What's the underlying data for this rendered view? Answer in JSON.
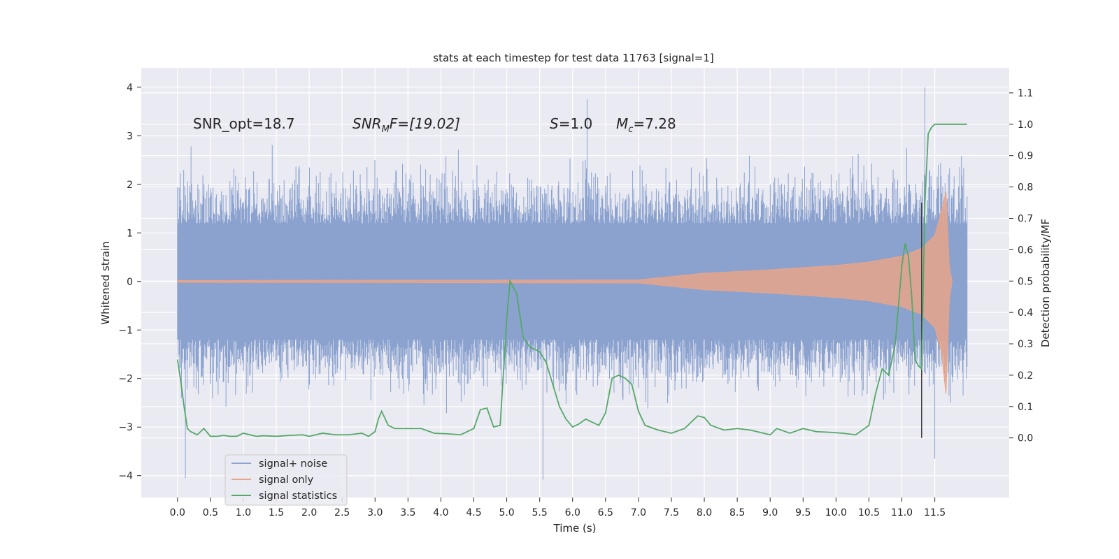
{
  "chart_data": {
    "type": "line",
    "title": "stats at each timestep for test data 11763 [signal=1]",
    "xlabel": "Time (s)",
    "ylabel": "Whitened strain",
    "ylabel_right": "Detection probability/MF",
    "xlim": [
      -0.55,
      12.63
    ],
    "ylim": [
      -4.45,
      4.4
    ],
    "ylim_right": [
      -0.19,
      1.18
    ],
    "x_ticks": [
      "0.0",
      "0.5",
      "1.0",
      "1.5",
      "2.0",
      "2.5",
      "3.0",
      "3.5",
      "4.0",
      "4.5",
      "5.0",
      "5.5",
      "6.0",
      "6.5",
      "7.0",
      "7.5",
      "8.0",
      "8.5",
      "9.0",
      "9.5",
      "10.0",
      "10.5",
      "11.0",
      "11.5"
    ],
    "y_ticks": [
      "4",
      "3",
      "2",
      "1",
      "0",
      "−1",
      "−2",
      "−3",
      "−4"
    ],
    "y_ticks_right": [
      "1.1",
      "1.0",
      "0.9",
      "0.8",
      "0.7",
      "0.6",
      "0.5",
      "0.4",
      "0.3",
      "0.2",
      "0.1",
      "0.0"
    ],
    "grid": true,
    "legend_position": "lower-left",
    "annotations": {
      "snr_opt": "SNR_opt=18.7",
      "snr_mf_prefix": "SNR",
      "snr_mf_sub": "M",
      "snr_mf_suffix": "F=[19.02]",
      "s_var": "S",
      "s_val": "=1.0",
      "mc_var": "M",
      "mc_sub": "c",
      "mc_val": "=7.28"
    },
    "marker_line_x": 11.3,
    "series": [
      {
        "name": "signal+ noise",
        "color": "#8ba2cf",
        "description_key": "noise",
        "x_range": [
          0.0,
          11.99
        ],
        "envelope": {
          "inner": 1.2,
          "notable_peaks": [
            {
              "x": 0.12,
              "y": -4.05
            },
            {
              "x": 6.22,
              "y": 3.75
            },
            {
              "x": 5.55,
              "y": -4.08
            },
            {
              "x": 11.35,
              "y": 4.0
            },
            {
              "x": 11.5,
              "y": -3.65
            }
          ]
        }
      },
      {
        "name": "signal only",
        "color": "#e6a58a",
        "envelope_points": [
          {
            "x": 0.0,
            "y": 0.02
          },
          {
            "x": 7.0,
            "y": 0.03
          },
          {
            "x": 8.0,
            "y": 0.17
          },
          {
            "x": 9.0,
            "y": 0.24
          },
          {
            "x": 10.0,
            "y": 0.33
          },
          {
            "x": 10.5,
            "y": 0.4
          },
          {
            "x": 11.0,
            "y": 0.52
          },
          {
            "x": 11.3,
            "y": 0.68
          },
          {
            "x": 11.5,
            "y": 0.95
          },
          {
            "x": 11.6,
            "y": 1.45
          },
          {
            "x": 11.67,
            "y": 1.85
          },
          {
            "x": 11.72,
            "y": 0.3
          },
          {
            "x": 11.76,
            "y": 0.02
          }
        ]
      },
      {
        "name": "signal statistics",
        "color": "#55a868",
        "x": [
          0.0,
          0.05,
          0.1,
          0.15,
          0.2,
          0.3,
          0.4,
          0.5,
          0.6,
          0.7,
          0.8,
          0.9,
          1.0,
          1.1,
          1.2,
          1.3,
          1.5,
          1.7,
          1.9,
          2.0,
          2.1,
          2.2,
          2.4,
          2.6,
          2.8,
          2.9,
          3.0,
          3.05,
          3.1,
          3.2,
          3.3,
          3.5,
          3.7,
          3.9,
          4.1,
          4.3,
          4.5,
          4.6,
          4.7,
          4.8,
          4.9,
          5.0,
          5.05,
          5.15,
          5.25,
          5.35,
          5.45,
          5.5,
          5.6,
          5.7,
          5.8,
          5.9,
          6.0,
          6.1,
          6.2,
          6.3,
          6.4,
          6.5,
          6.6,
          6.7,
          6.8,
          6.9,
          7.0,
          7.1,
          7.3,
          7.5,
          7.7,
          7.9,
          8.0,
          8.1,
          8.3,
          8.5,
          8.7,
          8.9,
          9.0,
          9.1,
          9.3,
          9.5,
          9.7,
          9.9,
          10.1,
          10.3,
          10.5,
          10.6,
          10.7,
          10.8,
          10.9,
          11.0,
          11.05,
          11.1,
          11.15,
          11.2,
          11.25,
          11.3,
          11.35,
          11.4,
          11.45,
          11.5,
          11.6,
          11.8,
          11.99
        ],
        "values": [
          0.25,
          0.18,
          0.1,
          0.03,
          0.02,
          0.01,
          0.03,
          0.005,
          0.005,
          0.008,
          0.005,
          0.005,
          0.015,
          0.01,
          0.005,
          0.007,
          0.005,
          0.008,
          0.01,
          0.005,
          0.01,
          0.015,
          0.01,
          0.01,
          0.015,
          0.005,
          0.02,
          0.06,
          0.085,
          0.04,
          0.03,
          0.03,
          0.03,
          0.015,
          0.013,
          0.01,
          0.03,
          0.09,
          0.095,
          0.035,
          0.04,
          0.38,
          0.5,
          0.46,
          0.32,
          0.29,
          0.28,
          0.275,
          0.24,
          0.17,
          0.1,
          0.06,
          0.035,
          0.045,
          0.06,
          0.05,
          0.04,
          0.08,
          0.19,
          0.2,
          0.19,
          0.17,
          0.085,
          0.04,
          0.025,
          0.015,
          0.03,
          0.07,
          0.065,
          0.04,
          0.025,
          0.03,
          0.025,
          0.015,
          0.01,
          0.03,
          0.015,
          0.03,
          0.02,
          0.018,
          0.015,
          0.01,
          0.04,
          0.14,
          0.22,
          0.2,
          0.3,
          0.55,
          0.62,
          0.58,
          0.45,
          0.25,
          0.23,
          0.22,
          0.75,
          0.97,
          0.99,
          1.0,
          1.0,
          1.0,
          1.0
        ]
      }
    ]
  }
}
